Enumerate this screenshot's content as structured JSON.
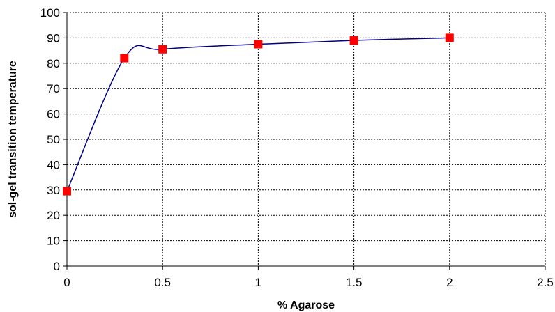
{
  "chart_data": {
    "type": "scatter",
    "title": "",
    "xlabel": "% Agarose",
    "ylabel": "sol-gel transition temperature",
    "xlim": [
      0,
      2.5
    ],
    "ylim": [
      0,
      100
    ],
    "x_ticks": [
      0,
      0.5,
      1,
      1.5,
      2,
      2.5
    ],
    "x_tick_labels": [
      "0",
      "0.5",
      "1",
      "1.5",
      "2",
      "2.5"
    ],
    "y_ticks": [
      0,
      10,
      20,
      30,
      40,
      50,
      60,
      70,
      80,
      90,
      100
    ],
    "y_tick_labels": [
      "0",
      "10",
      "20",
      "30",
      "40",
      "50",
      "60",
      "70",
      "80",
      "90",
      "100"
    ],
    "grid": true,
    "legend": "none",
    "series": [
      {
        "line_color": "#000080",
        "marker_color": "#ff0000",
        "marker": "square",
        "smooth_line": true,
        "points": [
          {
            "x": 0,
            "y": 29.5
          },
          {
            "x": 0.3,
            "y": 82
          },
          {
            "x": 0.5,
            "y": 85.5
          },
          {
            "x": 1,
            "y": 87.5
          },
          {
            "x": 1.5,
            "y": 89
          },
          {
            "x": 2,
            "y": 90
          }
        ]
      }
    ]
  }
}
